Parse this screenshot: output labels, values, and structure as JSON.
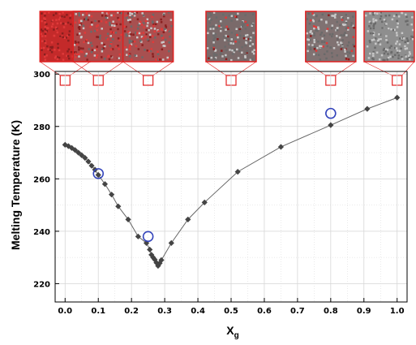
{
  "chart_data": {
    "type": "scatter",
    "xlabel": "X",
    "xlabel_sub": "g",
    "ylabel": "Melting Temperature (K)",
    "xlim": [
      -0.03,
      1.03
    ],
    "ylim": [
      213,
      301
    ],
    "grid": true,
    "xticks": [
      "0.0",
      "0.1",
      "0.2",
      "0.3",
      "0.4",
      "0.5",
      "0.6",
      "0.7",
      "0.8",
      "0.9",
      "1.0"
    ],
    "yticks": [
      "220",
      "240",
      "260",
      "280",
      "300"
    ],
    "series": [
      {
        "marker": "diamond-filled",
        "color": "#444444",
        "line": true,
        "x": [
          0.0,
          0.01,
          0.02,
          0.03,
          0.04,
          0.05,
          0.06,
          0.07,
          0.08,
          0.09,
          0.1,
          0.12,
          0.14,
          0.16,
          0.19,
          0.22,
          0.245,
          0.255,
          0.26,
          0.265,
          0.27,
          0.275,
          0.28,
          0.285,
          0.29,
          0.32,
          0.37,
          0.42,
          0.52,
          0.65,
          0.8,
          0.91,
          1.0
        ],
        "y": [
          273,
          272.5,
          271.8,
          271,
          270,
          269,
          268,
          266.6,
          265,
          263.5,
          261.5,
          258,
          254,
          249.5,
          244.5,
          238,
          235.5,
          233,
          231,
          230,
          229.2,
          228,
          226.8,
          227.8,
          229,
          235.5,
          244.5,
          251,
          262.7,
          272.2,
          280.5,
          286.7,
          291
        ]
      },
      {
        "marker": "circle-open",
        "color": "#3344bb",
        "line": false,
        "x": [
          0.1,
          0.25,
          0.8
        ],
        "y": [
          262,
          238,
          285
        ]
      }
    ],
    "inset_markers": [
      {
        "x": 0.0,
        "fill": "#c42a2a",
        "gray_fraction": 0.0
      },
      {
        "x": 0.1,
        "fill": "#b04848",
        "gray_fraction": 0.45
      },
      {
        "x": 0.25,
        "fill": "#a85050",
        "gray_fraction": 0.55
      },
      {
        "x": 0.5,
        "fill": "#7a6a6a",
        "gray_fraction": 0.8
      },
      {
        "x": 0.8,
        "fill": "#807272",
        "gray_fraction": 0.85
      },
      {
        "x": 1.0,
        "fill": "#8e8e8e",
        "gray_fraction": 1.0
      }
    ],
    "colors": {
      "inset_frame": "#e02020",
      "grid": "#d6d6d6",
      "line": "#666666"
    }
  }
}
